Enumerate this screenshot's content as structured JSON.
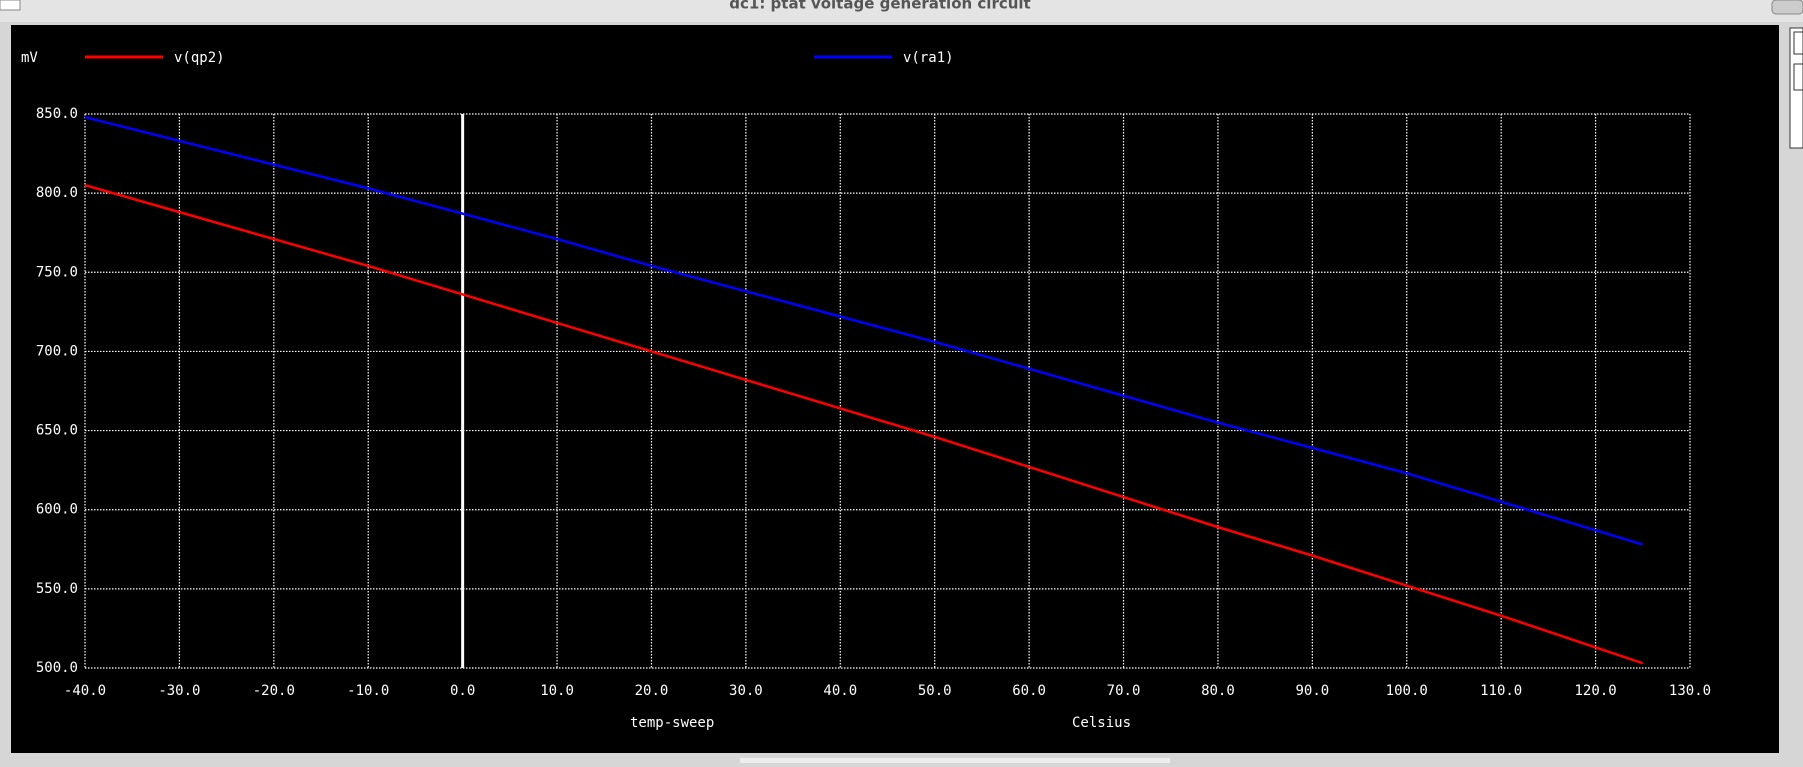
{
  "window_title": "dc1: ptat voltage generation circuit",
  "chart_data": {
    "type": "line",
    "y_unit": "mV",
    "xlabel": "temp-sweep",
    "xunit": "Celsius",
    "x": [
      -40,
      -30,
      -20,
      -10,
      0,
      10,
      20,
      30,
      40,
      50,
      60,
      70,
      80,
      90,
      100,
      110,
      120,
      125
    ],
    "series": [
      {
        "name": "v(qp2)",
        "color": "#ff0000",
        "values": [
          805,
          788,
          771,
          754,
          736,
          718,
          700,
          682,
          664,
          646,
          627,
          608,
          589,
          571,
          552,
          533,
          513,
          503
        ]
      },
      {
        "name": "v(ra1)",
        "color": "#0000ff",
        "values": [
          848,
          833,
          818,
          803,
          787,
          771,
          754,
          738,
          722,
          706,
          689,
          672,
          655,
          639,
          623,
          605,
          587,
          578
        ]
      }
    ],
    "xlim": [
      -40,
      130
    ],
    "ylim": [
      500,
      850
    ],
    "grid": true,
    "xticks": [
      {
        "value": -40,
        "label": "-40.0"
      },
      {
        "value": -30,
        "label": "-30.0"
      },
      {
        "value": -20,
        "label": "-20.0"
      },
      {
        "value": -10,
        "label": "-10.0"
      },
      {
        "value": 0,
        "label": "0.0"
      },
      {
        "value": 10,
        "label": "10.0"
      },
      {
        "value": 20,
        "label": "20.0"
      },
      {
        "value": 30,
        "label": "30.0"
      },
      {
        "value": 40,
        "label": "40.0"
      },
      {
        "value": 50,
        "label": "50.0"
      },
      {
        "value": 60,
        "label": "60.0"
      },
      {
        "value": 70,
        "label": "70.0"
      },
      {
        "value": 80,
        "label": "80.0"
      },
      {
        "value": 90,
        "label": "90.0"
      },
      {
        "value": 100,
        "label": "100.0"
      },
      {
        "value": 110,
        "label": "110.0"
      },
      {
        "value": 120,
        "label": "120.0"
      },
      {
        "value": 130,
        "label": "130.0"
      }
    ],
    "yticks": [
      {
        "value": 500,
        "label": "500.0"
      },
      {
        "value": 550,
        "label": "550.0"
      },
      {
        "value": 600,
        "label": "600.0"
      },
      {
        "value": 650,
        "label": "650.0"
      },
      {
        "value": 700,
        "label": "700.0"
      },
      {
        "value": 750,
        "label": "750.0"
      },
      {
        "value": 800,
        "label": "800.0"
      },
      {
        "value": 850,
        "label": "850.0"
      }
    ]
  }
}
